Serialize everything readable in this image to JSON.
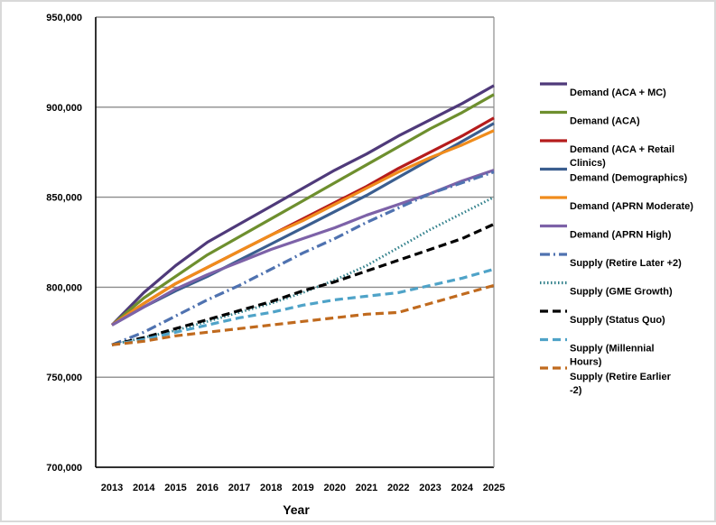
{
  "chart_data": {
    "type": "line",
    "title": "",
    "xlabel": "Year",
    "ylabel": "",
    "ylim": [
      700000,
      950000
    ],
    "x": [
      2013,
      2014,
      2015,
      2016,
      2017,
      2018,
      2019,
      2020,
      2021,
      2022,
      2023,
      2024,
      2025
    ],
    "y_ticks": [
      "700,000",
      "750,000",
      "800,000",
      "850,000",
      "900,000",
      "950,000"
    ],
    "y_tick_values": [
      700000,
      750000,
      800000,
      850000,
      900000,
      950000
    ],
    "legend_position": "right",
    "series": [
      {
        "name": "Demand (ACA + MC)",
        "color": "#4f3a7a",
        "dash": "solid",
        "values": [
          779000,
          797000,
          812000,
          825000,
          835000,
          845000,
          855000,
          865000,
          874000,
          884000,
          893000,
          902000,
          912000
        ]
      },
      {
        "name": "Demand (ACA)",
        "color": "#6e8f2e",
        "dash": "solid",
        "values": [
          779000,
          794000,
          806000,
          818000,
          828000,
          838000,
          848000,
          858000,
          868000,
          878000,
          888000,
          897000,
          907000
        ]
      },
      {
        "name": "Demand (ACA + Retail Clinics)",
        "color": "#b51c1c",
        "dash": "solid",
        "values": [
          779000,
          791000,
          802000,
          811000,
          820000,
          829000,
          838000,
          847000,
          856000,
          866000,
          875000,
          884000,
          894000
        ]
      },
      {
        "name": "Demand (Demographics)",
        "color": "#3b5e8f",
        "dash": "solid",
        "values": [
          779000,
          789000,
          798000,
          806000,
          815000,
          824000,
          833000,
          842000,
          851000,
          861000,
          871000,
          881000,
          891000
        ]
      },
      {
        "name": "Demand (APRN Moderate)",
        "color": "#f08c1c",
        "dash": "solid",
        "values": [
          779000,
          791000,
          802000,
          811000,
          820000,
          829000,
          837000,
          846000,
          855000,
          864000,
          872000,
          879000,
          887000
        ]
      },
      {
        "name": "Demand (APRN High)",
        "color": "#7d62a8",
        "dash": "solid",
        "values": [
          779000,
          789000,
          799000,
          807000,
          814000,
          821000,
          827000,
          833000,
          840000,
          846000,
          852000,
          859000,
          865000
        ]
      },
      {
        "name": "Supply (Retire Later +2)",
        "color": "#4f72b0",
        "dash": "dashdot",
        "values": [
          768000,
          775000,
          784000,
          793000,
          801000,
          810000,
          819000,
          827000,
          836000,
          844000,
          852000,
          858000,
          864000
        ]
      },
      {
        "name": "Supply (GME Growth)",
        "color": "#2f7f8a",
        "dash": "dotted",
        "values": [
          768000,
          772000,
          776000,
          781000,
          786000,
          791000,
          797000,
          804000,
          812000,
          822000,
          832000,
          841000,
          850000
        ]
      },
      {
        "name": "Supply (Status Quo)",
        "color": "#000000",
        "dash": "dashed",
        "values": [
          768000,
          772000,
          777000,
          782000,
          787000,
          792000,
          798000,
          803000,
          809000,
          815000,
          821000,
          827000,
          835000
        ]
      },
      {
        "name": "Supply (Millennial Hours)",
        "color": "#4fa3c8",
        "dash": "dashed",
        "values": [
          768000,
          771000,
          775000,
          779000,
          783000,
          786000,
          790000,
          793000,
          795000,
          797000,
          801000,
          805000,
          810000
        ]
      },
      {
        "name": "Supply (Retire Earlier -2)",
        "color": "#c06a1e",
        "dash": "dashed",
        "values": [
          768000,
          770000,
          773000,
          775000,
          777000,
          779000,
          781000,
          783000,
          785000,
          786000,
          791000,
          796000,
          801000
        ]
      }
    ]
  }
}
